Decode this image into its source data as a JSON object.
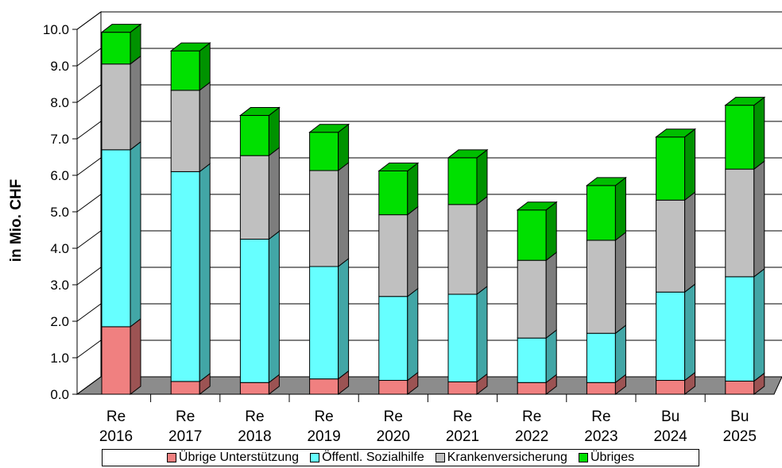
{
  "chart_data": {
    "type": "bar",
    "stacked": true,
    "three_d": true,
    "ylabel": "in Mio. CHF",
    "ylim": [
      0,
      10
    ],
    "ytick_labels": [
      "0.0",
      "1.0",
      "2.0",
      "3.0",
      "4.0",
      "5.0",
      "6.0",
      "7.0",
      "8.0",
      "9.0",
      "10.0"
    ],
    "grid": true,
    "legend_position": "bottom",
    "categories": [
      [
        "Re",
        "2016"
      ],
      [
        "Re",
        "2017"
      ],
      [
        "Re",
        "2018"
      ],
      [
        "Re",
        "2019"
      ],
      [
        "Re",
        "2020"
      ],
      [
        "Re",
        "2021"
      ],
      [
        "Re",
        "2022"
      ],
      [
        "Re",
        "2023"
      ],
      [
        "Bu",
        "2024"
      ],
      [
        "Bu",
        "2025"
      ]
    ],
    "series": [
      {
        "name": "Übrige Unterstützung",
        "color": "#f08080",
        "values": [
          1.85,
          0.35,
          0.32,
          0.42,
          0.38,
          0.34,
          0.32,
          0.32,
          0.38,
          0.36
        ]
      },
      {
        "name": "Öffentl. Sozialhilfe",
        "color": "#66ffff",
        "values": [
          4.85,
          5.75,
          3.93,
          3.08,
          2.3,
          2.4,
          1.22,
          1.35,
          2.42,
          2.86
        ]
      },
      {
        "name": "Krankenversicherung",
        "color": "#c0c0c0",
        "values": [
          2.35,
          2.23,
          2.29,
          2.63,
          2.24,
          2.46,
          2.13,
          2.55,
          2.52,
          2.95
        ]
      },
      {
        "name": "Übriges",
        "color": "#00e000",
        "values": [
          0.87,
          1.08,
          1.1,
          1.05,
          1.2,
          1.28,
          1.38,
          1.5,
          1.73,
          1.75
        ]
      }
    ]
  },
  "legend": {
    "items": [
      {
        "label": "Übrige Unterstützung",
        "color": "#f08080"
      },
      {
        "label": "Öffentl. Sozialhilfe",
        "color": "#66ffff"
      },
      {
        "label": "Krankenversicherung",
        "color": "#c0c0c0"
      },
      {
        "label": "Übriges",
        "color": "#00e000"
      }
    ]
  }
}
